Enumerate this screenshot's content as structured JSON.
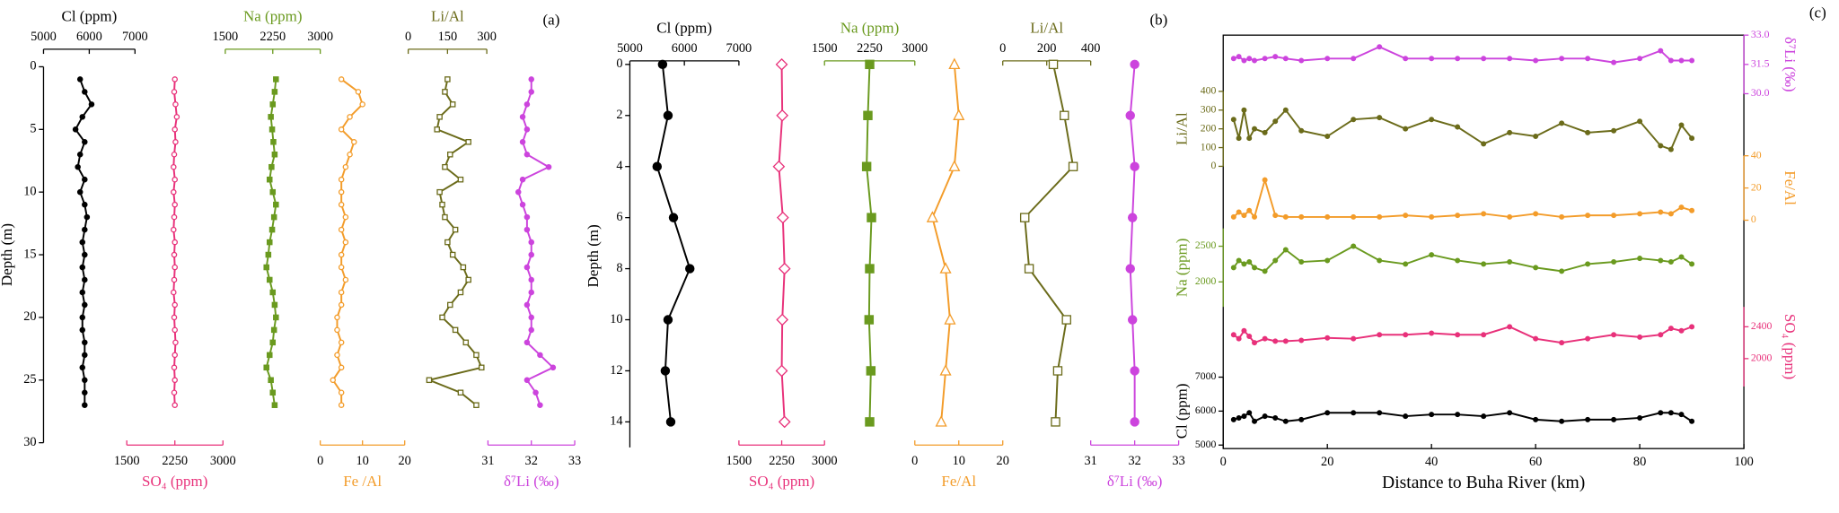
{
  "chart_data": [
    {
      "type": "profile",
      "label": "(a)",
      "ylabel": "Depth (m)",
      "ylim": [
        0,
        30
      ],
      "yticks": [
        0,
        5,
        10,
        15,
        20,
        25,
        30
      ],
      "depth": [
        1,
        2,
        3,
        4,
        5,
        6,
        7,
        8,
        9,
        10,
        11,
        12,
        13,
        14,
        15,
        16,
        17,
        18,
        19,
        20,
        21,
        22,
        23,
        24,
        25,
        26,
        27
      ],
      "tracks": [
        {
          "name": "Cl (ppm)",
          "axis": "top",
          "xlim": [
            5000,
            7000
          ],
          "xticks": [
            5000,
            6000,
            7000
          ],
          "color": "#000000",
          "marker": "circle",
          "filled": true,
          "values": [
            5800,
            5900,
            6050,
            5850,
            5700,
            5900,
            5800,
            5750,
            5900,
            5800,
            5900,
            5950,
            5900,
            5850,
            5900,
            5850,
            5900,
            5850,
            5900,
            5850,
            5850,
            5900,
            5900,
            5850,
            5900,
            5900,
            5900
          ]
        },
        {
          "name": "SO₄ (ppm)",
          "axis": "bottom",
          "xlim": [
            1500,
            3000
          ],
          "xticks": [
            1500,
            2250,
            3000
          ],
          "color": "#e8317a",
          "marker": "circle",
          "filled": false,
          "values": [
            2250,
            2240,
            2260,
            2280,
            2250,
            2260,
            2240,
            2230,
            2250,
            2230,
            2250,
            2240,
            2230,
            2250,
            2240,
            2250,
            2240,
            2230,
            2250,
            2240,
            2250,
            2260,
            2250,
            2240,
            2250,
            2240,
            2250
          ]
        },
        {
          "name": "Na (ppm)",
          "axis": "top",
          "xlim": [
            1500,
            3000
          ],
          "xticks": [
            1500,
            2250,
            3000
          ],
          "color": "#6a9a1f",
          "marker": "square",
          "filled": true,
          "values": [
            2300,
            2280,
            2250,
            2220,
            2240,
            2260,
            2280,
            2230,
            2200,
            2250,
            2300,
            2270,
            2240,
            2200,
            2180,
            2150,
            2200,
            2250,
            2280,
            2300,
            2270,
            2250,
            2200,
            2150,
            2220,
            2250,
            2280
          ]
        },
        {
          "name": "Fe /Al",
          "axis": "bottom",
          "xlim": [
            0,
            20
          ],
          "xticks": [
            0,
            10,
            20
          ],
          "color": "#f39c2a",
          "marker": "circle",
          "filled": false,
          "values": [
            5,
            9,
            10,
            7,
            5,
            8,
            7,
            6,
            5,
            5,
            5,
            6,
            5,
            6,
            5,
            5,
            6,
            5,
            5,
            4,
            4,
            5,
            4,
            5,
            3,
            5,
            5
          ]
        },
        {
          "name": "Li/Al",
          "axis": "top",
          "xlim": [
            0,
            300
          ],
          "xticks": [
            0,
            150,
            300
          ],
          "color": "#6b6b1a",
          "marker": "square",
          "filled": false,
          "values": [
            150,
            140,
            170,
            120,
            110,
            230,
            160,
            140,
            200,
            120,
            130,
            140,
            180,
            150,
            170,
            210,
            230,
            200,
            160,
            130,
            180,
            220,
            260,
            280,
            80,
            200,
            260
          ]
        },
        {
          "name": "δ⁷Li (‰)",
          "axis": "bottom",
          "xlim": [
            31,
            33
          ],
          "xticks": [
            31,
            32,
            33
          ],
          "color": "#cc44dd",
          "marker": "circle",
          "filled": true,
          "values": [
            32.0,
            32.0,
            31.9,
            31.8,
            31.9,
            31.8,
            31.9,
            32.4,
            31.8,
            31.7,
            31.8,
            31.9,
            31.9,
            32.0,
            32.0,
            31.9,
            32.0,
            32.0,
            31.9,
            32.0,
            32.0,
            31.9,
            32.2,
            32.5,
            31.9,
            32.1,
            32.2
          ]
        }
      ]
    },
    {
      "type": "profile",
      "label": "(b)",
      "ylabel": "Depth (m)",
      "ylim": [
        0,
        15
      ],
      "yticks": [
        0,
        2,
        4,
        6,
        8,
        10,
        12,
        14
      ],
      "depth": [
        0,
        2,
        4,
        6,
        8,
        10,
        12,
        14
      ],
      "tracks": [
        {
          "name": "Cl (ppm)",
          "axis": "top",
          "xlim": [
            5000,
            7000
          ],
          "xticks": [
            5000,
            6000,
            7000
          ],
          "color": "#000000",
          "marker": "circle",
          "filled": true,
          "values": [
            5600,
            5700,
            5500,
            5800,
            6100,
            5700,
            5650,
            5750
          ]
        },
        {
          "name": "SO₄ (ppm)",
          "axis": "bottom",
          "xlim": [
            1500,
            3000
          ],
          "xticks": [
            1500,
            2250,
            3000
          ],
          "color": "#e8317a",
          "marker": "diamond",
          "filled": false,
          "values": [
            2250,
            2260,
            2200,
            2270,
            2300,
            2260,
            2250,
            2300
          ]
        },
        {
          "name": "Na (ppm)",
          "axis": "top",
          "xlim": [
            1500,
            3000
          ],
          "xticks": [
            1500,
            2250,
            3000
          ],
          "color": "#6a9a1f",
          "marker": "square",
          "filled": true,
          "values": [
            2250,
            2220,
            2200,
            2280,
            2250,
            2240,
            2270,
            2250
          ]
        },
        {
          "name": "Fe/Al",
          "axis": "bottom",
          "xlim": [
            0,
            20
          ],
          "xticks": [
            0,
            10,
            20
          ],
          "color": "#f39c2a",
          "marker": "triangle",
          "filled": false,
          "values": [
            9,
            10,
            9,
            4,
            7,
            8,
            7,
            6
          ]
        },
        {
          "name": "Li/Al",
          "axis": "top",
          "xlim": [
            0,
            400
          ],
          "xticks": [
            0,
            200,
            400
          ],
          "color": "#6b6b1a",
          "marker": "square",
          "filled": false,
          "values": [
            230,
            280,
            320,
            100,
            120,
            290,
            250,
            240
          ]
        },
        {
          "name": "δ⁷Li (‰)",
          "axis": "bottom",
          "xlim": [
            31,
            33
          ],
          "xticks": [
            31,
            32,
            33
          ],
          "color": "#cc44dd",
          "marker": "circle",
          "filled": true,
          "values": [
            32.0,
            31.9,
            32.0,
            31.95,
            31.9,
            31.95,
            32.0,
            32.0
          ]
        }
      ]
    },
    {
      "type": "stacked",
      "label": "(c)",
      "xlabel": "Distance to Buha River (km)",
      "xlim": [
        0,
        100
      ],
      "xticks": [
        0,
        20,
        40,
        60,
        80,
        100
      ],
      "x": [
        2,
        3,
        4,
        5,
        6,
        8,
        10,
        12,
        15,
        20,
        25,
        30,
        35,
        40,
        45,
        50,
        55,
        60,
        65,
        70,
        75,
        80,
        84,
        86,
        88,
        90
      ],
      "series": [
        {
          "name": "δ⁷Li (‰)",
          "side": "right",
          "ylim": [
            30,
            33
          ],
          "yticks": [
            {
              "value": 30,
              "label": "30.0"
            },
            31.5,
            {
              "value": 33,
              "label": "33.0"
            }
          ],
          "color": "#cc44dd",
          "values": [
            31.8,
            31.9,
            31.7,
            31.8,
            31.7,
            31.8,
            31.9,
            31.8,
            31.7,
            31.8,
            31.8,
            32.4,
            31.8,
            31.8,
            31.8,
            31.8,
            31.8,
            31.7,
            31.8,
            31.8,
            31.6,
            31.8,
            32.2,
            31.7,
            31.7,
            31.7
          ]
        },
        {
          "name": "Li/Al",
          "side": "left",
          "ylim": [
            0,
            400
          ],
          "yticks": [
            0,
            100,
            200,
            300,
            400
          ],
          "color": "#6b6b1a",
          "values": [
            250,
            150,
            300,
            150,
            200,
            180,
            240,
            300,
            190,
            160,
            250,
            260,
            200,
            250,
            210,
            120,
            180,
            160,
            230,
            180,
            190,
            240,
            110,
            90,
            220,
            150
          ]
        },
        {
          "name": "Fe/Al",
          "side": "right",
          "ylim": [
            0,
            40
          ],
          "yticks": [
            0,
            20,
            40
          ],
          "color": "#f39c2a",
          "values": [
            2,
            5,
            3,
            6,
            2,
            25,
            3,
            2,
            2,
            2,
            2,
            2,
            3,
            2,
            3,
            4,
            2,
            4,
            2,
            3,
            3,
            4,
            5,
            4,
            8,
            6
          ]
        },
        {
          "name": "Na (ppm)",
          "side": "left",
          "ylim": [
            1650,
            2750
          ],
          "yticks": [
            2000,
            2500
          ],
          "color": "#6a9a1f",
          "values": [
            2200,
            2300,
            2250,
            2280,
            2200,
            2150,
            2300,
            2450,
            2280,
            2300,
            2500,
            2300,
            2250,
            2380,
            2300,
            2250,
            2280,
            2200,
            2150,
            2250,
            2280,
            2330,
            2300,
            2280,
            2350,
            2250
          ]
        },
        {
          "name": "SO₄ (ppm)",
          "side": "right",
          "ylim": [
            1650,
            2650
          ],
          "yticks": [
            2000,
            2400
          ],
          "color": "#e8317a",
          "values": [
            2300,
            2250,
            2350,
            2280,
            2200,
            2250,
            2220,
            2220,
            2230,
            2260,
            2250,
            2300,
            2300,
            2320,
            2300,
            2300,
            2400,
            2250,
            2200,
            2250,
            2300,
            2270,
            2300,
            2380,
            2350,
            2400
          ]
        },
        {
          "name": "Cl (ppm)",
          "side": "left",
          "ylim": [
            5000,
            7000
          ],
          "yticks": [
            5000,
            6000,
            7000
          ],
          "color": "#000000",
          "values": [
            5750,
            5800,
            5850,
            5950,
            5700,
            5850,
            5800,
            5700,
            5750,
            5950,
            5950,
            5950,
            5850,
            5900,
            5900,
            5850,
            5950,
            5750,
            5700,
            5750,
            5750,
            5800,
            5950,
            5950,
            5900,
            5700
          ]
        }
      ]
    }
  ]
}
